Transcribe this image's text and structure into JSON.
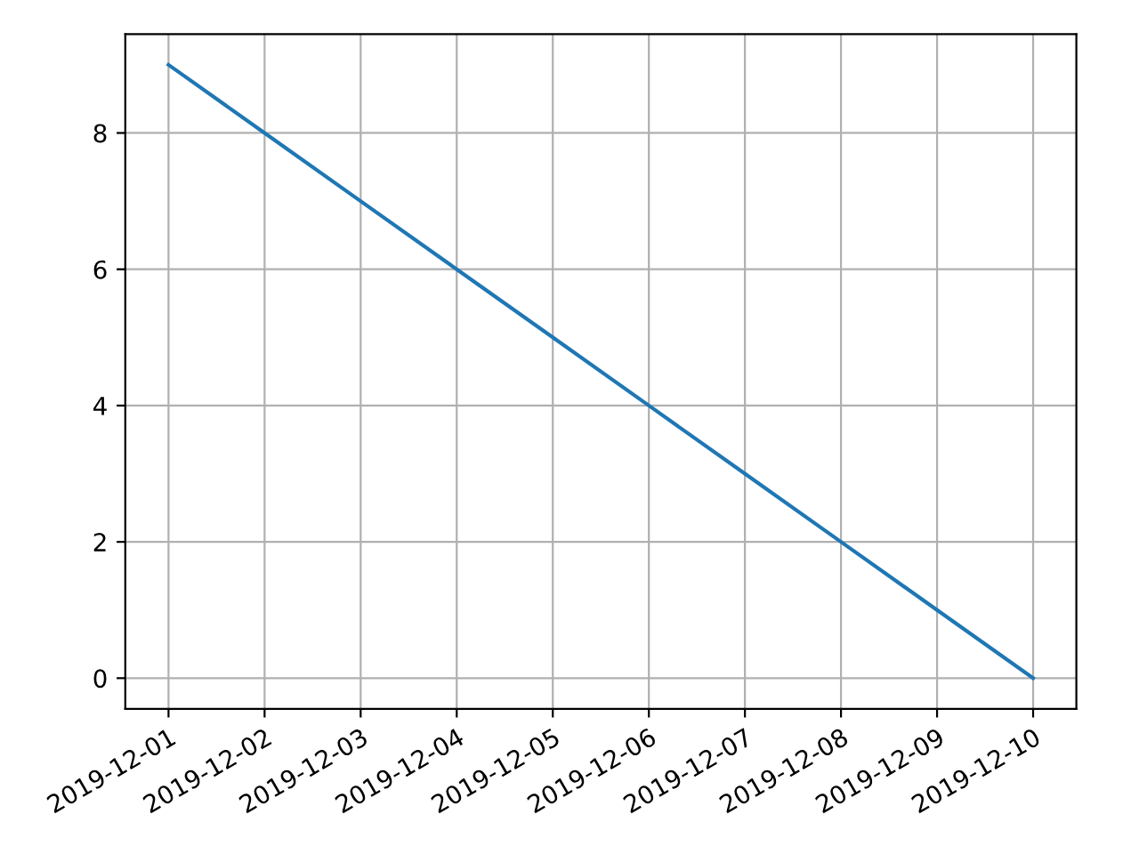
{
  "chart_data": {
    "type": "line",
    "x": [
      "2019-12-01",
      "2019-12-02",
      "2019-12-03",
      "2019-12-04",
      "2019-12-05",
      "2019-12-06",
      "2019-12-07",
      "2019-12-08",
      "2019-12-09",
      "2019-12-10"
    ],
    "series": [
      {
        "color": "#1f77b4",
        "values": [
          9,
          8,
          7,
          6,
          5,
          4,
          3,
          2,
          1,
          0
        ]
      }
    ],
    "xlim": [
      "2019-11-30T13:12",
      "2019-12-10T10:48"
    ],
    "xticks": [
      "2019-12-01",
      "2019-12-02",
      "2019-12-03",
      "2019-12-04",
      "2019-12-05",
      "2019-12-06",
      "2019-12-07",
      "2019-12-08",
      "2019-12-09",
      "2019-12-10"
    ],
    "ylim": [
      -0.45,
      9.45
    ],
    "yticks": [
      0,
      2,
      4,
      6,
      8
    ],
    "grid": true
  }
}
